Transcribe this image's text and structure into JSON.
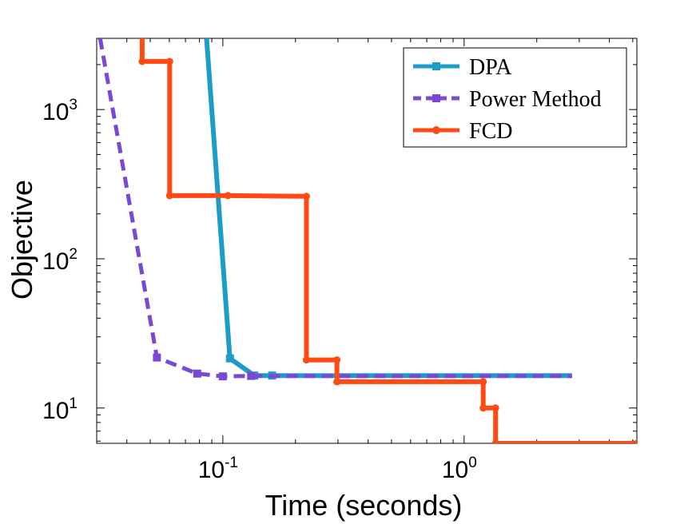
{
  "chart_data": {
    "type": "line",
    "xlabel": "Time (seconds)",
    "ylabel": "Objective",
    "xscale": "log",
    "yscale": "log",
    "xlim": [
      0.03,
      5.2
    ],
    "ylim": [
      5.8,
      3000
    ],
    "grid": false,
    "legend_position": "top-right",
    "x_ticks": [
      {
        "value": 0.1,
        "base": "10",
        "exp": "-1"
      },
      {
        "value": 1,
        "base": "10",
        "exp": "0"
      }
    ],
    "y_ticks": [
      {
        "value": 10,
        "base": "10",
        "exp": "1"
      },
      {
        "value": 100,
        "base": "10",
        "exp": "2"
      },
      {
        "value": 1000,
        "base": "10",
        "exp": "3"
      }
    ],
    "series": [
      {
        "name": "DPA",
        "color": "#1e9cc8",
        "style": "solid",
        "marker": "square",
        "points": [
          [
            0.0856,
            3000
          ],
          [
            0.107,
            21.5
          ],
          [
            0.135,
            16.5
          ],
          [
            0.16,
            16.5
          ],
          [
            2.8,
            16.5
          ]
        ],
        "markers": [
          [
            0.107,
            21.5
          ],
          [
            0.135,
            16.5
          ],
          [
            0.16,
            16.5
          ]
        ]
      },
      {
        "name": "Power Method",
        "color": "#7b48d6",
        "style": "dashed",
        "marker": "square",
        "points": [
          [
            0.031,
            3000
          ],
          [
            0.0533,
            21.8
          ],
          [
            0.0783,
            17.0
          ],
          [
            0.1,
            16.3
          ],
          [
            0.131,
            16.4
          ],
          [
            0.2,
            16.4
          ],
          [
            2.8,
            16.4
          ]
        ],
        "markers": [
          [
            0.0533,
            21.8
          ],
          [
            0.0783,
            17.0
          ],
          [
            0.1,
            16.3
          ],
          [
            0.131,
            16.4
          ]
        ]
      },
      {
        "name": "FCD",
        "color": "#ff4a14",
        "style": "solid",
        "marker": "circle",
        "points": [
          [
            0.0463,
            3000
          ],
          [
            0.0463,
            2100
          ],
          [
            0.0602,
            2100
          ],
          [
            0.0602,
            265
          ],
          [
            0.105,
            265
          ],
          [
            0.222,
            262
          ],
          [
            0.222,
            21
          ],
          [
            0.297,
            21
          ],
          [
            0.297,
            15
          ],
          [
            1.2,
            15
          ],
          [
            1.2,
            10
          ],
          [
            1.35,
            10
          ],
          [
            1.35,
            5.8
          ],
          [
            5.2,
            5.8
          ]
        ],
        "markers": [
          [
            0.0463,
            2100
          ],
          [
            0.0602,
            2100
          ],
          [
            0.0602,
            265
          ],
          [
            0.105,
            265
          ],
          [
            0.222,
            262
          ],
          [
            0.222,
            21
          ],
          [
            0.297,
            21
          ],
          [
            0.297,
            15
          ],
          [
            1.2,
            15
          ],
          [
            1.2,
            10
          ],
          [
            1.35,
            10
          ],
          [
            1.35,
            5.8
          ],
          [
            5.2,
            5.8
          ]
        ]
      }
    ]
  }
}
